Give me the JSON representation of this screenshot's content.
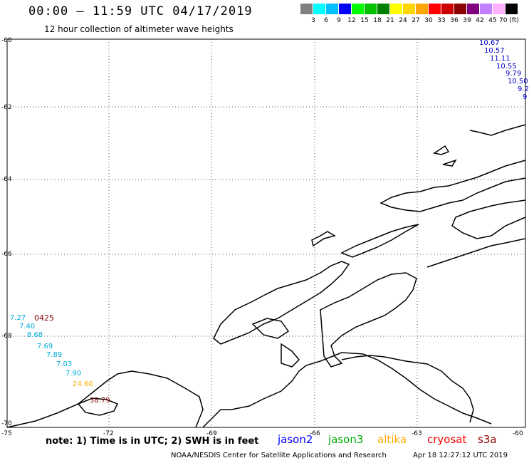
{
  "header": {
    "title": "00:00 – 11:59 UTC 04/17/2019",
    "subtitle": "12 hour collection of altimeter wave heights"
  },
  "legend_scale": {
    "labels": [
      "3",
      "6",
      "9",
      "12",
      "15",
      "18",
      "21",
      "24",
      "27",
      "30",
      "33",
      "36",
      "39",
      "42",
      "45",
      "70 (ft)"
    ],
    "colors": [
      "#808080",
      "#00ffff",
      "#00bfff",
      "#0000ff",
      "#00ff00",
      "#00c000",
      "#008000",
      "#ffff00",
      "#ffd700",
      "#ffa500",
      "#ff0000",
      "#cc0000",
      "#8b0000",
      "#800080",
      "#c080ff",
      "#ffb0ff",
      "#000000"
    ]
  },
  "map": {
    "lat_labels": [
      "-60",
      "-62",
      "-64",
      "-66",
      "-68",
      "-70"
    ],
    "lon_labels": [
      "-75",
      "-72",
      "-69",
      "-66",
      "-63",
      "-60"
    ],
    "pass_id": "0425",
    "obs_topright": [
      {
        "text": "10.67",
        "color": "#0000cc"
      },
      {
        "text": "10.57",
        "color": "#0000cc"
      },
      {
        "text": "11.11",
        "color": "#0000cc"
      },
      {
        "text": "10.55",
        "color": "#0000cc"
      },
      {
        "text": "9.79",
        "color": "#0000cc"
      },
      {
        "text": "10.50",
        "color": "#0000cc"
      },
      {
        "text": "9.2",
        "color": "#0000cc"
      },
      {
        "text": "9",
        "color": "#0000cc"
      }
    ],
    "obs_left": [
      {
        "text": "7.27",
        "color": "#00aadd"
      },
      {
        "text": "7.40",
        "color": "#00aadd"
      },
      {
        "text": "8.68",
        "color": "#00aadd"
      },
      {
        "text": "7.69",
        "color": "#00aadd"
      },
      {
        "text": "7.89",
        "color": "#00aadd"
      },
      {
        "text": "7.03",
        "color": "#00aadd"
      },
      {
        "text": "7.90",
        "color": "#00aadd"
      },
      {
        "text": "24.60",
        "color": "#ffaa00"
      },
      {
        "text": "38.79",
        "color": "#8b0000"
      }
    ]
  },
  "notes": "note: 1) Time is in UTC; 2) SWH is in feet",
  "satellites": [
    {
      "name": "jason2",
      "color": "#0000ff"
    },
    {
      "name": "jason3",
      "color": "#00aa00"
    },
    {
      "name": "altika",
      "color": "#ffaa00"
    },
    {
      "name": "cryosat",
      "color": "#ff0000"
    },
    {
      "name": "s3a",
      "color": "#8b0000"
    }
  ],
  "footer": "NOAA/NESDIS Center for Satellite Applications and Research",
  "timestamp": "Apr 18 12:27:12 UTC 2019"
}
